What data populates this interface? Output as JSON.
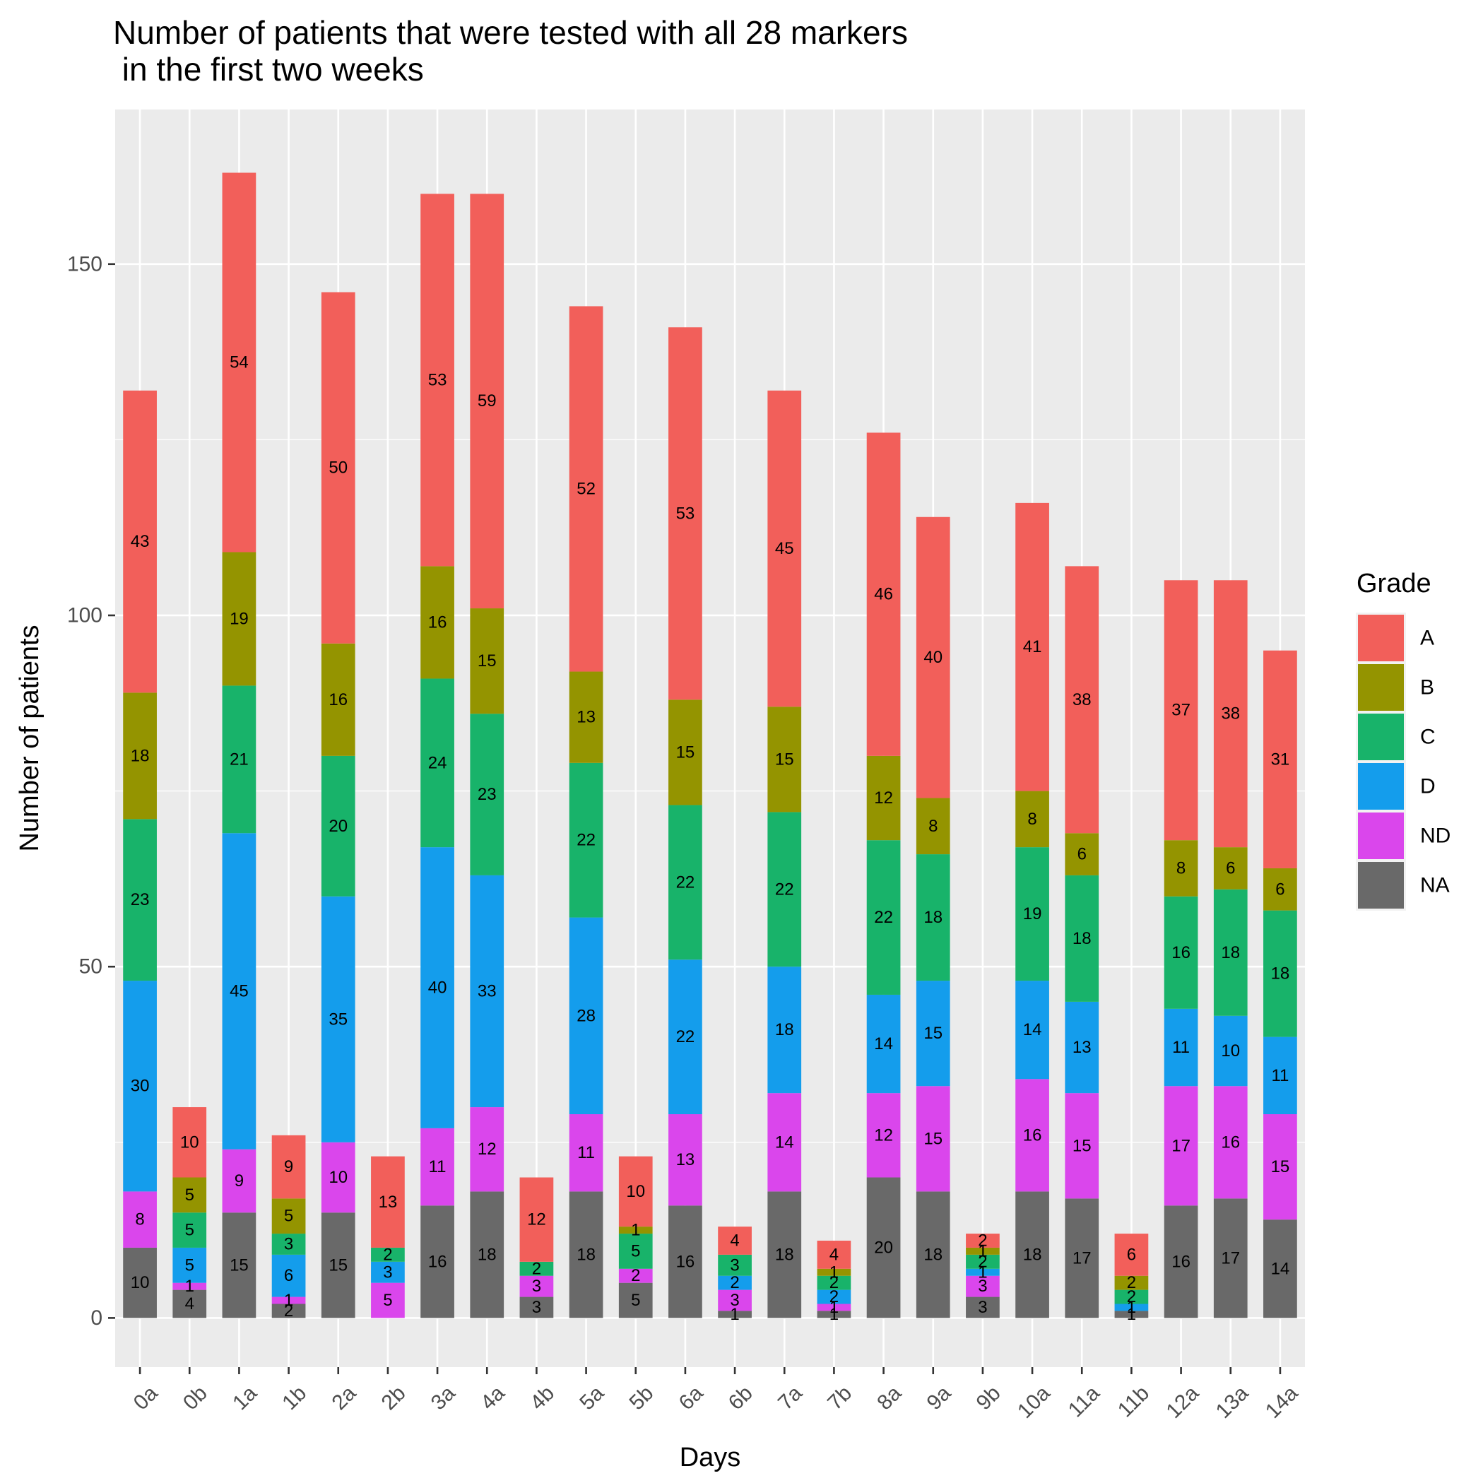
{
  "chart_data": {
    "type": "bar",
    "stacked": true,
    "title": "Number of patients that were tested with all 28 markers\n in the first two weeks",
    "xlabel": "Days",
    "ylabel": "Number of patients",
    "categories": [
      "0a",
      "0b",
      "1a",
      "1b",
      "2a",
      "2b",
      "3a",
      "4a",
      "4b",
      "5a",
      "5b",
      "6a",
      "6b",
      "7a",
      "7b",
      "8a",
      "9a",
      "9b",
      "10a",
      "11a",
      "11b",
      "12a",
      "13a",
      "14a"
    ],
    "series": [
      {
        "name": "NA",
        "color": "#696969",
        "values": [
          10,
          4,
          15,
          2,
          15,
          0,
          16,
          18,
          3,
          18,
          5,
          16,
          1,
          18,
          1,
          20,
          18,
          3,
          18,
          17,
          1,
          16,
          17,
          14
        ]
      },
      {
        "name": "ND",
        "color": "#DA46EC",
        "values": [
          8,
          1,
          9,
          1,
          10,
          5,
          11,
          12,
          3,
          11,
          2,
          13,
          3,
          14,
          1,
          12,
          15,
          3,
          16,
          15,
          0,
          17,
          16,
          15
        ]
      },
      {
        "name": "D",
        "color": "#149DEC",
        "values": [
          30,
          5,
          45,
          6,
          35,
          3,
          40,
          33,
          0,
          28,
          0,
          22,
          2,
          18,
          2,
          14,
          15,
          1,
          14,
          13,
          1,
          11,
          10,
          11
        ]
      },
      {
        "name": "C",
        "color": "#18B36A",
        "values": [
          23,
          5,
          21,
          3,
          20,
          2,
          24,
          23,
          2,
          22,
          5,
          22,
          3,
          22,
          2,
          22,
          18,
          2,
          19,
          18,
          2,
          16,
          18,
          18
        ]
      },
      {
        "name": "B",
        "color": "#949400",
        "values": [
          18,
          5,
          19,
          5,
          16,
          0,
          16,
          15,
          0,
          13,
          1,
          15,
          0,
          15,
          1,
          12,
          8,
          1,
          8,
          6,
          2,
          8,
          6,
          6
        ]
      },
      {
        "name": "A",
        "color": "#F25F5A",
        "values": [
          43,
          10,
          54,
          9,
          50,
          13,
          53,
          59,
          12,
          52,
          10,
          53,
          4,
          45,
          4,
          46,
          40,
          2,
          41,
          38,
          6,
          37,
          38,
          31
        ]
      }
    ],
    "ylim": [
      -7,
      172
    ],
    "yticks": [
      0,
      50,
      100,
      150
    ],
    "grid": true,
    "legend": {
      "title": "Grade",
      "position": "right",
      "order": [
        "A",
        "B",
        "C",
        "D",
        "ND",
        "NA"
      ]
    }
  }
}
